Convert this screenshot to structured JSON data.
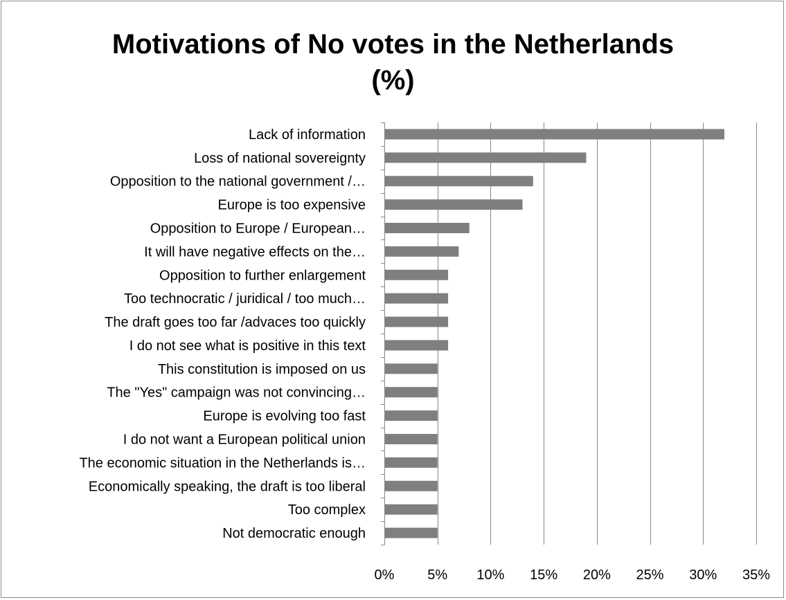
{
  "chart_data": {
    "type": "bar",
    "orientation": "horizontal",
    "title": "Motivations of No votes in the Netherlands (%)",
    "title_lines": [
      "Motivations of No votes in the Netherlands",
      "(%)"
    ],
    "xlabel": "",
    "ylabel": "",
    "categories": [
      "Lack of information",
      "Loss of national sovereignty",
      "Opposition to the national government /…",
      "Europe is too expensive",
      "Opposition to Europe / European…",
      "It will have negative effects on the…",
      "Opposition to further enlargement",
      "Too technocratic / juridical / too much…",
      "The draft goes too far /advaces too quickly",
      "I do not see what is positive in this text",
      "This constitution is imposed on us",
      "The \"Yes\" campaign was not convincing…",
      "Europe is evolving too fast",
      "I do not want a European political union",
      "The economic situation in the Netherlands is…",
      "Economically speaking, the draft is too liberal",
      "Too complex",
      "Not democratic enough"
    ],
    "values": [
      32,
      19,
      14,
      13,
      8,
      7,
      6,
      6,
      6,
      6,
      5,
      5,
      5,
      5,
      5,
      5,
      5,
      5
    ],
    "xlim": [
      0,
      35
    ],
    "x_ticks": [
      0,
      5,
      10,
      15,
      20,
      25,
      30,
      35
    ],
    "x_tick_labels": [
      "0%",
      "5%",
      "10%",
      "15%",
      "20%",
      "25%",
      "30%",
      "35%"
    ],
    "grid": "vertical",
    "legend": "none",
    "bar_color": "#7f7f7f",
    "grid_color": "#868686"
  }
}
